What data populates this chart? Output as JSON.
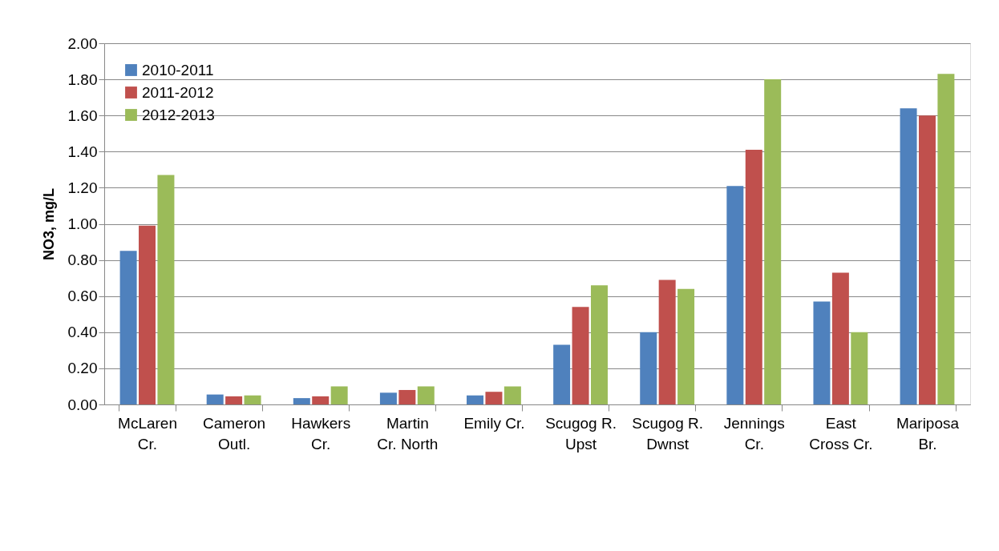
{
  "chart_data": {
    "type": "bar",
    "ylabel": "NO3, mg/L",
    "categories": [
      "McLaren\nCr.",
      "Cameron\nOutl.",
      "Hawkers\nCr.",
      "Martin\nCr. North",
      "Emily Cr.",
      "Scugog R.\nUpst",
      "Scugog R.\nDwnst",
      "Jennings\nCr.",
      "East\nCross Cr.",
      "Mariposa\nBr."
    ],
    "series": [
      {
        "name": "2010-2011",
        "color": "#4f81bd",
        "values": [
          0.85,
          0.055,
          0.035,
          0.065,
          0.05,
          0.33,
          0.4,
          1.21,
          0.57,
          1.64
        ]
      },
      {
        "name": "2011-2012",
        "color": "#c0504d",
        "values": [
          0.99,
          0.045,
          0.045,
          0.08,
          0.07,
          0.54,
          0.69,
          1.41,
          0.73,
          1.6
        ]
      },
      {
        "name": "2012-2013",
        "color": "#9bbb59",
        "values": [
          1.27,
          0.05,
          0.1,
          0.1,
          0.1,
          0.66,
          0.64,
          1.8,
          0.4,
          1.83
        ]
      }
    ],
    "ylim": [
      0,
      2
    ],
    "yticks": [
      {
        "value": 0,
        "label": "0.00"
      },
      {
        "value": 0.2,
        "label": "0.20"
      },
      {
        "value": 0.4,
        "label": "0.40"
      },
      {
        "value": 0.6,
        "label": "0.60"
      },
      {
        "value": 0.8,
        "label": "0.80"
      },
      {
        "value": 1.0,
        "label": "1.00"
      },
      {
        "value": 1.2,
        "label": "1.20"
      },
      {
        "value": 1.4,
        "label": "1.40"
      },
      {
        "value": 1.6,
        "label": "1.60"
      },
      {
        "value": 1.8,
        "label": "1.80"
      },
      {
        "value": 2.0,
        "label": "2.00"
      }
    ],
    "grid": "y",
    "legend": "top left"
  }
}
